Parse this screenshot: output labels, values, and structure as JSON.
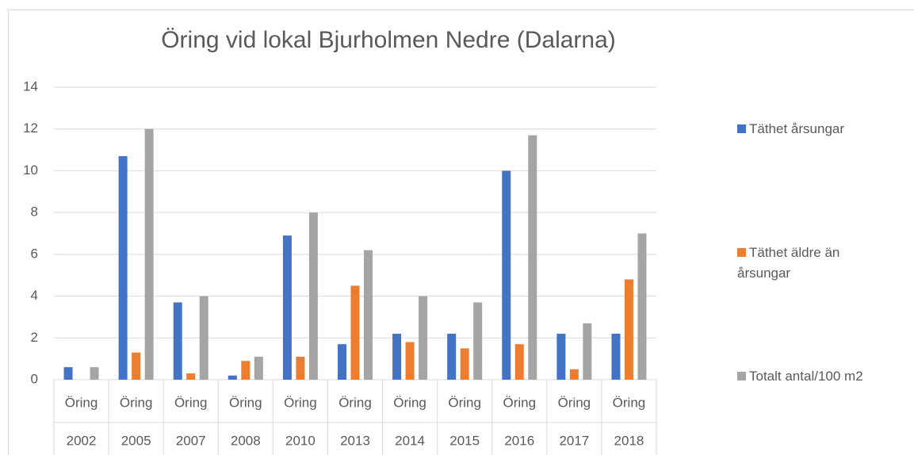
{
  "chart_data": {
    "type": "bar",
    "title": "Öring vid lokal Bjurholmen Nedre (Dalarna)",
    "categories": [
      "2002",
      "2005",
      "2007",
      "2008",
      "2010",
      "2013",
      "2014",
      "2015",
      "2016",
      "2017",
      "2018"
    ],
    "category_groups": [
      "Öring",
      "Öring",
      "Öring",
      "Öring",
      "Öring",
      "Öring",
      "Öring",
      "Öring",
      "Öring",
      "Öring",
      "Öring"
    ],
    "series": [
      {
        "name": "Täthet årsungar",
        "color": "#4472c4",
        "values": [
          0.6,
          10.7,
          3.7,
          0.2,
          6.9,
          1.7,
          2.2,
          2.2,
          10,
          2.2,
          2.2
        ]
      },
      {
        "name": "Täthet äldre än årsungar",
        "color": "#ed7d31",
        "values": [
          0,
          1.3,
          0.3,
          0.9,
          1.1,
          4.5,
          1.8,
          1.5,
          1.7,
          0.5,
          4.8
        ]
      },
      {
        "name": "Totalt antal/100 m2",
        "color": "#a5a5a5",
        "values": [
          0.6,
          12,
          4,
          1.1,
          8,
          6.2,
          4,
          3.7,
          11.7,
          2.7,
          7
        ]
      }
    ],
    "ylim": [
      0,
      14
    ],
    "yticks": [
      0,
      2,
      4,
      6,
      8,
      10,
      12,
      14
    ],
    "grid": true,
    "legend": "right"
  }
}
